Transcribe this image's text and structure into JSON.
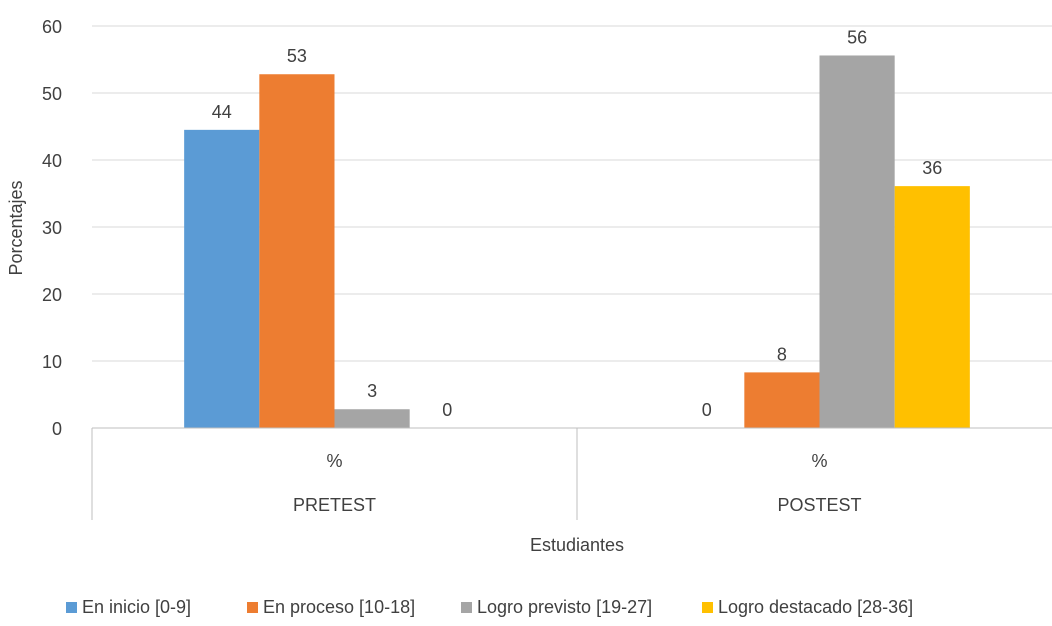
{
  "chart_data": {
    "type": "bar",
    "xlabel": "Estudiantes",
    "ylabel": "Porcentajes",
    "ylim": [
      0,
      60
    ],
    "yticks": [
      0,
      10,
      20,
      30,
      40,
      50,
      60
    ],
    "grid": true,
    "legend_position": "bottom",
    "groups": [
      {
        "sublabel": "%",
        "label": "PRETEST"
      },
      {
        "sublabel": "%",
        "label": "POSTEST"
      }
    ],
    "series": [
      {
        "name": "En inicio [0-9]",
        "color": "#5B9BD5",
        "values": [
          44.5,
          0
        ],
        "labels": [
          "44",
          "0"
        ]
      },
      {
        "name": "En proceso [10-18]",
        "color": "#ED7D31",
        "values": [
          52.8,
          8.3
        ],
        "labels": [
          "53",
          "8"
        ]
      },
      {
        "name": "Logro previsto [19-27]",
        "color": "#A5A5A5",
        "values": [
          2.8,
          55.6
        ],
        "labels": [
          "3",
          "56"
        ]
      },
      {
        "name": "Logro destacado [28-36]",
        "color": "#FFC000",
        "values": [
          0,
          36.1
        ],
        "labels": [
          "0",
          "36"
        ]
      }
    ]
  }
}
